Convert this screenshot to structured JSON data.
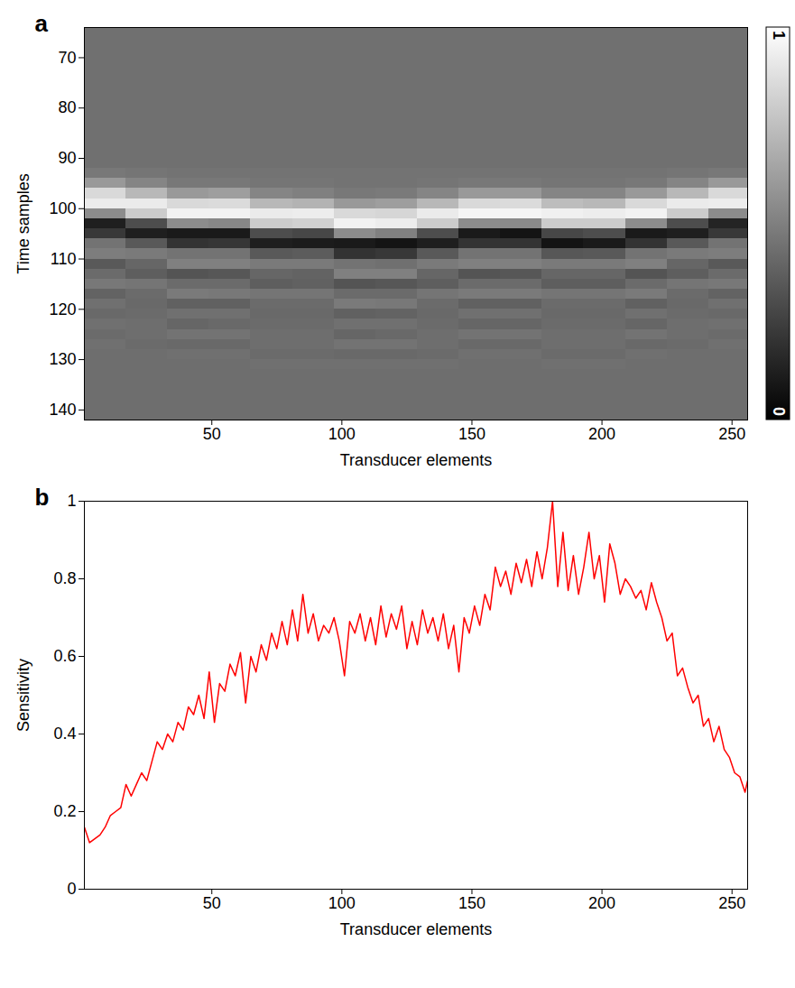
{
  "chart_data": [
    {
      "type": "heatmap",
      "panel_label": "a",
      "x_label": "Transducer elements",
      "y_label": "Time samples",
      "xlim": [
        1,
        256
      ],
      "xticks": [
        50,
        100,
        150,
        200,
        250
      ],
      "ylim": [
        142,
        64
      ],
      "yticks": [
        70,
        80,
        90,
        100,
        110,
        120,
        130,
        140
      ],
      "grid": false,
      "color": "gray",
      "x_edges": [
        1,
        17,
        33,
        49,
        65,
        81,
        97,
        113,
        129,
        145,
        161,
        177,
        193,
        209,
        225,
        241,
        256
      ],
      "y_edges": [
        64,
        92,
        94,
        96,
        98,
        100,
        102,
        104,
        106,
        108,
        110,
        112,
        114,
        116,
        118,
        120,
        122,
        124,
        126,
        128,
        130,
        132,
        142
      ],
      "values": [
        [
          0.44,
          0.47,
          0.6,
          0.85,
          0.92,
          0.55,
          0.12,
          0.22,
          0.45,
          0.49,
          0.35,
          0.42,
          0.47,
          0.39,
          0.44,
          0.41,
          0.44,
          0.42,
          0.44,
          0.43,
          0.43,
          0.43
        ],
        [
          0.44,
          0.46,
          0.52,
          0.72,
          0.92,
          0.8,
          0.3,
          0.12,
          0.35,
          0.48,
          0.4,
          0.37,
          0.46,
          0.42,
          0.41,
          0.42,
          0.43,
          0.43,
          0.42,
          0.43,
          0.43,
          0.43
        ],
        [
          0.44,
          0.45,
          0.47,
          0.6,
          0.85,
          0.95,
          0.55,
          0.1,
          0.2,
          0.45,
          0.5,
          0.33,
          0.42,
          0.48,
          0.38,
          0.44,
          0.4,
          0.45,
          0.41,
          0.44,
          0.43,
          0.43
        ],
        [
          0.44,
          0.45,
          0.47,
          0.62,
          0.86,
          0.95,
          0.53,
          0.1,
          0.21,
          0.45,
          0.5,
          0.34,
          0.42,
          0.47,
          0.38,
          0.44,
          0.41,
          0.45,
          0.41,
          0.44,
          0.43,
          0.43
        ],
        [
          0.44,
          0.45,
          0.46,
          0.52,
          0.72,
          0.92,
          0.8,
          0.3,
          0.12,
          0.35,
          0.48,
          0.4,
          0.37,
          0.46,
          0.42,
          0.41,
          0.42,
          0.43,
          0.43,
          0.42,
          0.44,
          0.43
        ],
        [
          0.44,
          0.45,
          0.46,
          0.5,
          0.7,
          0.93,
          0.82,
          0.28,
          0.11,
          0.36,
          0.48,
          0.39,
          0.38,
          0.46,
          0.42,
          0.41,
          0.42,
          0.43,
          0.43,
          0.42,
          0.44,
          0.43
        ],
        [
          0.44,
          0.45,
          0.45,
          0.47,
          0.6,
          0.85,
          0.95,
          0.55,
          0.1,
          0.2,
          0.45,
          0.5,
          0.33,
          0.42,
          0.48,
          0.38,
          0.44,
          0.4,
          0.45,
          0.41,
          0.44,
          0.43
        ],
        [
          0.44,
          0.45,
          0.45,
          0.48,
          0.62,
          0.84,
          0.93,
          0.5,
          0.08,
          0.22,
          0.44,
          0.5,
          0.34,
          0.42,
          0.47,
          0.39,
          0.44,
          0.41,
          0.45,
          0.41,
          0.44,
          0.43
        ],
        [
          0.44,
          0.45,
          0.46,
          0.52,
          0.72,
          0.92,
          0.8,
          0.3,
          0.12,
          0.35,
          0.48,
          0.4,
          0.37,
          0.46,
          0.42,
          0.41,
          0.42,
          0.43,
          0.43,
          0.42,
          0.44,
          0.43
        ],
        [
          0.44,
          0.45,
          0.47,
          0.6,
          0.85,
          0.96,
          0.55,
          0.1,
          0.2,
          0.45,
          0.5,
          0.33,
          0.42,
          0.48,
          0.38,
          0.44,
          0.4,
          0.45,
          0.41,
          0.44,
          0.43,
          0.43
        ],
        [
          0.44,
          0.45,
          0.47,
          0.6,
          0.86,
          0.96,
          0.54,
          0.08,
          0.2,
          0.45,
          0.5,
          0.34,
          0.42,
          0.48,
          0.38,
          0.44,
          0.4,
          0.45,
          0.41,
          0.44,
          0.43,
          0.43
        ],
        [
          0.44,
          0.45,
          0.46,
          0.52,
          0.74,
          0.94,
          0.8,
          0.28,
          0.08,
          0.34,
          0.48,
          0.4,
          0.37,
          0.46,
          0.42,
          0.41,
          0.42,
          0.43,
          0.43,
          0.42,
          0.44,
          0.43
        ],
        [
          0.44,
          0.45,
          0.46,
          0.52,
          0.72,
          0.93,
          0.8,
          0.3,
          0.1,
          0.35,
          0.48,
          0.4,
          0.37,
          0.46,
          0.42,
          0.41,
          0.42,
          0.43,
          0.43,
          0.42,
          0.44,
          0.43
        ],
        [
          0.44,
          0.45,
          0.47,
          0.6,
          0.85,
          0.95,
          0.55,
          0.1,
          0.2,
          0.45,
          0.5,
          0.33,
          0.42,
          0.48,
          0.38,
          0.44,
          0.4,
          0.45,
          0.41,
          0.44,
          0.43,
          0.43
        ],
        [
          0.44,
          0.46,
          0.52,
          0.72,
          0.92,
          0.8,
          0.3,
          0.12,
          0.35,
          0.48,
          0.4,
          0.37,
          0.46,
          0.42,
          0.41,
          0.42,
          0.43,
          0.43,
          0.42,
          0.43,
          0.43,
          0.43
        ],
        [
          0.44,
          0.47,
          0.6,
          0.85,
          0.93,
          0.55,
          0.14,
          0.22,
          0.45,
          0.49,
          0.35,
          0.42,
          0.47,
          0.39,
          0.44,
          0.41,
          0.44,
          0.42,
          0.44,
          0.43,
          0.43,
          0.43
        ]
      ],
      "colorbar": {
        "range": [
          0,
          1
        ],
        "ticks": [
          0,
          1
        ]
      }
    },
    {
      "type": "line",
      "panel_label": "b",
      "x_label": "Transducer elements",
      "y_label": "Sensitivity",
      "xlim": [
        1,
        256
      ],
      "xticks": [
        50,
        100,
        150,
        200,
        250
      ],
      "ylim": [
        0,
        1
      ],
      "yticks": [
        0,
        0.2,
        0.4,
        0.6,
        0.8,
        1
      ],
      "grid": false,
      "color": "#ff0000",
      "x": [
        1,
        3,
        5,
        7,
        9,
        11,
        13,
        15,
        17,
        19,
        21,
        23,
        25,
        27,
        29,
        31,
        33,
        35,
        37,
        39,
        41,
        43,
        45,
        47,
        49,
        51,
        53,
        55,
        57,
        59,
        61,
        63,
        65,
        67,
        69,
        71,
        73,
        75,
        77,
        79,
        81,
        83,
        85,
        87,
        89,
        91,
        93,
        95,
        97,
        99,
        101,
        103,
        105,
        107,
        109,
        111,
        113,
        115,
        117,
        119,
        121,
        123,
        125,
        127,
        129,
        131,
        133,
        135,
        137,
        139,
        141,
        143,
        145,
        147,
        149,
        151,
        153,
        155,
        157,
        159,
        161,
        163,
        165,
        167,
        169,
        171,
        173,
        175,
        177,
        179,
        181,
        183,
        185,
        187,
        189,
        191,
        193,
        195,
        197,
        199,
        201,
        203,
        205,
        207,
        209,
        211,
        213,
        215,
        217,
        219,
        221,
        223,
        225,
        227,
        229,
        231,
        233,
        235,
        237,
        239,
        241,
        243,
        245,
        247,
        249,
        251,
        253,
        255,
        256
      ],
      "values": [
        0.16,
        0.12,
        0.13,
        0.14,
        0.16,
        0.19,
        0.2,
        0.21,
        0.27,
        0.24,
        0.27,
        0.3,
        0.28,
        0.33,
        0.38,
        0.36,
        0.4,
        0.38,
        0.43,
        0.41,
        0.47,
        0.45,
        0.5,
        0.44,
        0.56,
        0.43,
        0.53,
        0.51,
        0.58,
        0.55,
        0.61,
        0.48,
        0.6,
        0.56,
        0.63,
        0.59,
        0.66,
        0.62,
        0.69,
        0.63,
        0.72,
        0.64,
        0.76,
        0.66,
        0.71,
        0.64,
        0.68,
        0.66,
        0.7,
        0.64,
        0.55,
        0.69,
        0.66,
        0.71,
        0.64,
        0.7,
        0.63,
        0.73,
        0.65,
        0.71,
        0.67,
        0.73,
        0.62,
        0.69,
        0.63,
        0.72,
        0.66,
        0.7,
        0.64,
        0.71,
        0.62,
        0.68,
        0.56,
        0.7,
        0.66,
        0.73,
        0.68,
        0.76,
        0.72,
        0.83,
        0.78,
        0.82,
        0.76,
        0.84,
        0.79,
        0.85,
        0.78,
        0.87,
        0.8,
        0.88,
        1,
        0.78,
        0.92,
        0.77,
        0.86,
        0.76,
        0.83,
        0.92,
        0.8,
        0.86,
        0.74,
        0.89,
        0.84,
        0.76,
        0.8,
        0.78,
        0.75,
        0.77,
        0.72,
        0.79,
        0.74,
        0.7,
        0.64,
        0.66,
        0.55,
        0.57,
        0.52,
        0.48,
        0.5,
        0.42,
        0.44,
        0.38,
        0.42,
        0.36,
        0.34,
        0.3,
        0.29,
        0.25,
        0.28
      ]
    }
  ]
}
